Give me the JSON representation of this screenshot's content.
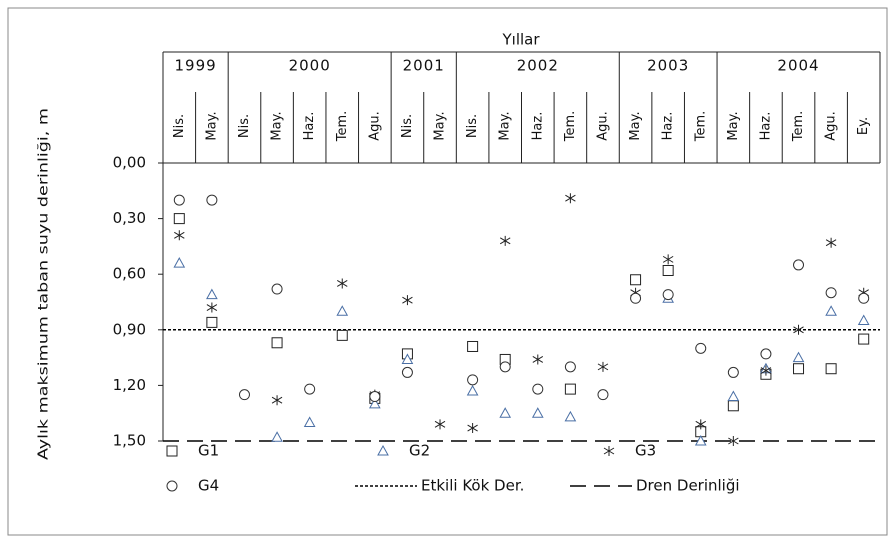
{
  "chart_data": {
    "type": "scatter",
    "title": "Yıllar",
    "y_label": "Aylık maksimum taban suyu derinliği, m",
    "year_groups": [
      {
        "year": "1999",
        "months": [
          "Nis.",
          "May."
        ]
      },
      {
        "year": "2000",
        "months": [
          "Nis.",
          "May.",
          "Haz.",
          "Tem.",
          "Agu."
        ]
      },
      {
        "year": "2001",
        "months": [
          "Nis.",
          "May."
        ]
      },
      {
        "year": "2002",
        "months": [
          "Nis.",
          "May.",
          "Haz.",
          "Tem.",
          "Agu."
        ]
      },
      {
        "year": "2003",
        "months": [
          "May.",
          "Haz.",
          "Tem."
        ]
      },
      {
        "year": "2004",
        "months": [
          "May.",
          "Haz.",
          "Tem.",
          "Agu.",
          "Ey."
        ]
      }
    ],
    "ylim": [
      0,
      1.5
    ],
    "y_inverted": true,
    "yticks": [
      {
        "value": 0,
        "label": "0,00"
      },
      {
        "value": 0.3,
        "label": "0,30"
      },
      {
        "value": 0.6,
        "label": "0,60"
      },
      {
        "value": 0.9,
        "label": "0,90"
      },
      {
        "value": 1.2,
        "label": "1,20"
      },
      {
        "value": 1.5,
        "label": "1,50"
      }
    ],
    "series": [
      {
        "name": "G1",
        "marker": "square",
        "color": "#222222",
        "values": [
          0.3,
          0.86,
          null,
          0.97,
          null,
          0.93,
          1.27,
          1.03,
          null,
          0.99,
          1.06,
          null,
          1.22,
          null,
          0.63,
          0.58,
          1.45,
          1.31,
          1.14,
          1.11,
          1.11,
          0.95
        ]
      },
      {
        "name": "G2",
        "marker": "triangle",
        "color": "#4a6fa5",
        "values": [
          0.54,
          0.71,
          null,
          1.48,
          1.4,
          0.8,
          1.3,
          1.06,
          null,
          1.23,
          1.35,
          1.35,
          1.37,
          null,
          null,
          0.73,
          1.5,
          1.26,
          1.11,
          1.05,
          0.8,
          0.85
        ]
      },
      {
        "name": "G3",
        "marker": "star",
        "color": "#222222",
        "values": [
          0.39,
          0.78,
          null,
          1.28,
          null,
          0.65,
          1.25,
          0.74,
          1.41,
          1.43,
          0.42,
          1.06,
          0.19,
          1.1,
          0.7,
          0.52,
          1.41,
          1.5,
          1.12,
          0.9,
          0.43,
          0.7
        ]
      },
      {
        "name": "G4",
        "marker": "circle",
        "color": "#333333",
        "values": [
          0.2,
          0.2,
          1.25,
          0.68,
          1.22,
          null,
          1.26,
          1.13,
          null,
          1.17,
          1.1,
          1.22,
          1.1,
          1.25,
          0.73,
          0.71,
          1.0,
          1.13,
          1.03,
          0.55,
          0.7,
          0.73
        ]
      }
    ],
    "reference_lines": [
      {
        "name": "Etkili Kök Der.",
        "value": 0.9,
        "style": "dotted",
        "color": "#000000"
      },
      {
        "name": "Dren Derinliği",
        "value": 1.5,
        "style": "dashed",
        "color": "#000000"
      }
    ]
  }
}
